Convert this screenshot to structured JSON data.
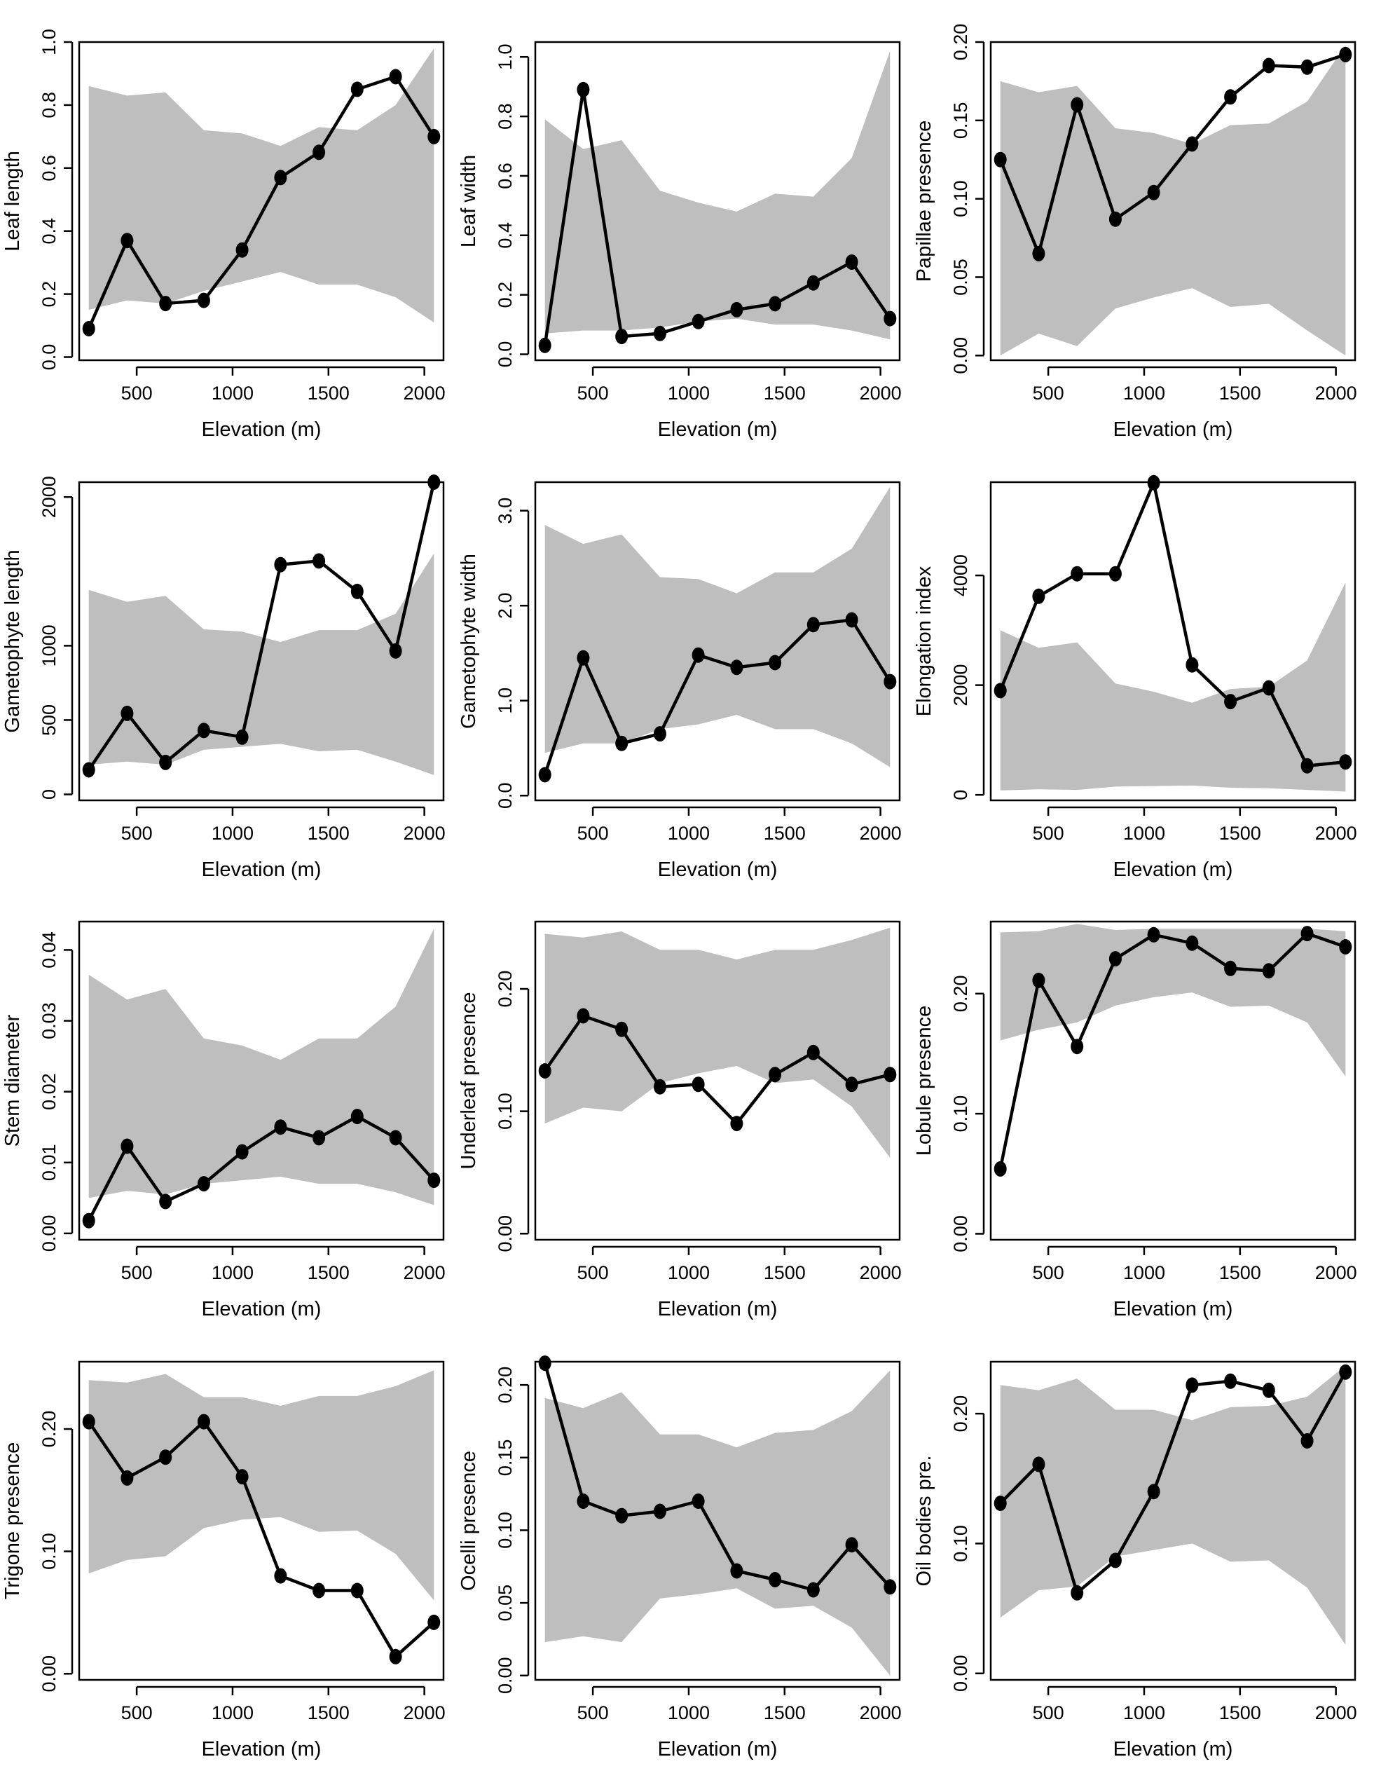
{
  "colors": {
    "band": "#bebebe",
    "line": "#000000",
    "point": "#000000",
    "frame": "#000000"
  },
  "chart_data": [
    {
      "type": "line",
      "xlabel": "Elevation (m)",
      "ylabel": "Leaf length",
      "xlim": [
        200,
        2100
      ],
      "ylim": [
        -0.01,
        1.0
      ],
      "xticks": [
        500,
        1000,
        1500,
        2000
      ],
      "xtick_labels": [
        "500",
        "1000",
        "1500",
        "2000"
      ],
      "yticks": [
        0.0,
        0.2,
        0.4,
        0.6,
        0.8,
        1.0
      ],
      "ytick_labels": [
        "0.0",
        "0.2",
        "0.4",
        "0.6",
        "0.8",
        "1.0"
      ],
      "x": [
        250,
        450,
        650,
        850,
        1050,
        1250,
        1450,
        1650,
        1850,
        2050
      ],
      "values": [
        0.09,
        0.37,
        0.17,
        0.18,
        0.34,
        0.57,
        0.65,
        0.85,
        0.89,
        0.7
      ],
      "band_x": [
        250,
        450,
        650,
        850,
        1050,
        1250,
        1450,
        1650,
        1850,
        2050
      ],
      "band_upper": [
        0.86,
        0.83,
        0.84,
        0.72,
        0.71,
        0.67,
        0.73,
        0.72,
        0.8,
        0.98
      ],
      "band_lower": [
        0.15,
        0.18,
        0.17,
        0.21,
        0.24,
        0.27,
        0.23,
        0.23,
        0.19,
        0.11
      ],
      "grid": false
    },
    {
      "type": "line",
      "xlabel": "Elevation (m)",
      "ylabel": "Leaf width",
      "xlim": [
        200,
        2100
      ],
      "ylim": [
        -0.02,
        1.05
      ],
      "xticks": [
        500,
        1000,
        1500,
        2000
      ],
      "xtick_labels": [
        "500",
        "1000",
        "1500",
        "2000"
      ],
      "yticks": [
        0.0,
        0.2,
        0.4,
        0.6,
        0.8,
        1.0
      ],
      "ytick_labels": [
        "0.0",
        "0.2",
        "0.4",
        "0.6",
        "0.8",
        "1.0"
      ],
      "x": [
        250,
        450,
        650,
        850,
        1050,
        1250,
        1450,
        1650,
        1850,
        2050
      ],
      "values": [
        0.03,
        0.89,
        0.06,
        0.07,
        0.11,
        0.15,
        0.17,
        0.24,
        0.31,
        0.12
      ],
      "band_x": [
        250,
        450,
        650,
        850,
        1050,
        1250,
        1450,
        1650,
        1850,
        2050
      ],
      "band_upper": [
        0.79,
        0.69,
        0.72,
        0.55,
        0.51,
        0.48,
        0.54,
        0.53,
        0.66,
        1.02
      ],
      "band_lower": [
        0.07,
        0.08,
        0.08,
        0.09,
        0.11,
        0.12,
        0.1,
        0.1,
        0.08,
        0.05
      ],
      "grid": false
    },
    {
      "type": "line",
      "xlabel": "Elevation (m)",
      "ylabel": "Papillae presence",
      "xlim": [
        200,
        2100
      ],
      "ylim": [
        -0.003,
        0.2
      ],
      "xticks": [
        500,
        1000,
        1500,
        2000
      ],
      "xtick_labels": [
        "500",
        "1000",
        "1500",
        "2000"
      ],
      "yticks": [
        0.0,
        0.05,
        0.1,
        0.15,
        0.2
      ],
      "ytick_labels": [
        "0.00",
        "0.05",
        "0.10",
        "0.15",
        "0.20"
      ],
      "x": [
        250,
        450,
        650,
        850,
        1050,
        1250,
        1450,
        1650,
        1850,
        2050
      ],
      "values": [
        0.125,
        0.065,
        0.16,
        0.087,
        0.104,
        0.135,
        0.165,
        0.185,
        0.184,
        0.192
      ],
      "band_x": [
        250,
        450,
        650,
        850,
        1050,
        1250,
        1450,
        1650,
        1850,
        2050
      ],
      "band_upper": [
        0.175,
        0.168,
        0.172,
        0.145,
        0.142,
        0.135,
        0.147,
        0.148,
        0.162,
        0.198
      ],
      "band_lower": [
        0.0,
        0.014,
        0.006,
        0.03,
        0.037,
        0.043,
        0.031,
        0.033,
        0.016,
        0.0
      ],
      "grid": false
    },
    {
      "type": "line",
      "xlabel": "Elevation (m)",
      "ylabel": "Gametophyte length",
      "xlim": [
        200,
        2100
      ],
      "ylim": [
        -40,
        2100
      ],
      "xticks": [
        500,
        1000,
        1500,
        2000
      ],
      "xtick_labels": [
        "500",
        "1000",
        "1500",
        "2000"
      ],
      "yticks": [
        0,
        500,
        1000,
        2000
      ],
      "ytick_labels": [
        "0",
        "500",
        "1000",
        "2000"
      ],
      "x": [
        250,
        450,
        650,
        850,
        1050,
        1250,
        1450,
        1650,
        1850,
        2050
      ],
      "values": [
        165,
        545,
        215,
        430,
        385,
        1545,
        1570,
        1365,
        965,
        2100
      ],
      "band_x": [
        250,
        450,
        650,
        850,
        1050,
        1250,
        1450,
        1650,
        1850,
        2050
      ],
      "band_upper": [
        1375,
        1295,
        1335,
        1110,
        1095,
        1025,
        1105,
        1105,
        1215,
        1620
      ],
      "band_lower": [
        200,
        220,
        200,
        300,
        320,
        340,
        290,
        300,
        220,
        130
      ],
      "grid": false
    },
    {
      "type": "line",
      "xlabel": "Elevation (m)",
      "ylabel": "Gametophyte width",
      "xlim": [
        200,
        2100
      ],
      "ylim": [
        -0.05,
        3.3
      ],
      "xticks": [
        500,
        1000,
        1500,
        2000
      ],
      "xtick_labels": [
        "500",
        "1000",
        "1500",
        "2000"
      ],
      "yticks": [
        0.0,
        1.0,
        2.0,
        3.0
      ],
      "ytick_labels": [
        "0.0",
        "1.0",
        "2.0",
        "3.0"
      ],
      "x": [
        250,
        450,
        650,
        850,
        1050,
        1250,
        1450,
        1650,
        1850,
        2050
      ],
      "values": [
        0.22,
        1.45,
        0.55,
        0.65,
        1.48,
        1.35,
        1.4,
        1.8,
        1.85,
        1.2
      ],
      "band_x": [
        250,
        450,
        650,
        850,
        1050,
        1250,
        1450,
        1650,
        1850,
        2050
      ],
      "band_upper": [
        2.85,
        2.65,
        2.75,
        2.3,
        2.28,
        2.13,
        2.35,
        2.35,
        2.6,
        3.25
      ],
      "band_lower": [
        0.45,
        0.55,
        0.55,
        0.7,
        0.75,
        0.85,
        0.7,
        0.7,
        0.55,
        0.3
      ],
      "grid": false
    },
    {
      "type": "line",
      "xlabel": "Elevation (m)",
      "ylabel": "Elongation index",
      "xlim": [
        200,
        2100
      ],
      "ylim": [
        -100,
        5700
      ],
      "xticks": [
        500,
        1000,
        1500,
        2000
      ],
      "xtick_labels": [
        "500",
        "1000",
        "1500",
        "2000"
      ],
      "yticks": [
        0,
        2000,
        4000
      ],
      "ytick_labels": [
        "0",
        "2000",
        "4000"
      ],
      "x": [
        250,
        450,
        650,
        850,
        1050,
        1250,
        1450,
        1650,
        1850,
        2050
      ],
      "values": [
        1900,
        3620,
        4030,
        4030,
        5690,
        2370,
        1700,
        1950,
        530,
        600
      ],
      "band_x": [
        250,
        450,
        650,
        850,
        1050,
        1250,
        1450,
        1650,
        1850,
        2050
      ],
      "band_upper": [
        3000,
        2680,
        2780,
        2030,
        1880,
        1680,
        1930,
        1970,
        2450,
        3870
      ],
      "band_lower": [
        80,
        100,
        90,
        150,
        160,
        170,
        130,
        120,
        90,
        60
      ],
      "grid": false
    },
    {
      "type": "line",
      "xlabel": "Elevation (m)",
      "ylabel": "Stem diameter",
      "xlim": [
        200,
        2100
      ],
      "ylim": [
        -0.0009,
        0.044
      ],
      "xticks": [
        500,
        1000,
        1500,
        2000
      ],
      "xtick_labels": [
        "500",
        "1000",
        "1500",
        "2000"
      ],
      "yticks": [
        0.0,
        0.01,
        0.02,
        0.03,
        0.04
      ],
      "ytick_labels": [
        "0.00",
        "0.01",
        "0.02",
        "0.03",
        "0.04"
      ],
      "x": [
        250,
        450,
        650,
        850,
        1050,
        1250,
        1450,
        1650,
        1850,
        2050
      ],
      "values": [
        0.0018,
        0.0123,
        0.0045,
        0.007,
        0.0115,
        0.015,
        0.0135,
        0.0165,
        0.0135,
        0.0075
      ],
      "band_x": [
        250,
        450,
        650,
        850,
        1050,
        1250,
        1450,
        1650,
        1850,
        2050
      ],
      "band_upper": [
        0.0365,
        0.033,
        0.0345,
        0.0275,
        0.0265,
        0.0245,
        0.0275,
        0.0275,
        0.032,
        0.043
      ],
      "band_lower": [
        0.005,
        0.006,
        0.0055,
        0.007,
        0.0075,
        0.008,
        0.007,
        0.007,
        0.0058,
        0.004
      ],
      "grid": false
    },
    {
      "type": "line",
      "xlabel": "Elevation (m)",
      "ylabel": "Underleaf presence",
      "xlim": [
        200,
        2100
      ],
      "ylim": [
        -0.005,
        0.255
      ],
      "xticks": [
        500,
        1000,
        1500,
        2000
      ],
      "xtick_labels": [
        "500",
        "1000",
        "1500",
        "2000"
      ],
      "yticks": [
        0.0,
        0.1,
        0.2
      ],
      "ytick_labels": [
        "0.00",
        "0.10",
        "0.20"
      ],
      "x": [
        250,
        450,
        650,
        850,
        1050,
        1250,
        1450,
        1650,
        1850,
        2050
      ],
      "values": [
        0.133,
        0.178,
        0.167,
        0.12,
        0.122,
        0.09,
        0.13,
        0.148,
        0.122,
        0.13
      ],
      "band_x": [
        250,
        450,
        650,
        850,
        1050,
        1250,
        1450,
        1650,
        1850,
        2050
      ],
      "band_upper": [
        0.245,
        0.242,
        0.247,
        0.232,
        0.232,
        0.224,
        0.232,
        0.232,
        0.24,
        0.25
      ],
      "band_lower": [
        0.09,
        0.103,
        0.1,
        0.123,
        0.131,
        0.137,
        0.123,
        0.126,
        0.104,
        0.062
      ],
      "grid": false
    },
    {
      "type": "line",
      "xlabel": "Elevation (m)",
      "ylabel": "Lobule presence",
      "xlim": [
        200,
        2100
      ],
      "ylim": [
        -0.005,
        0.26
      ],
      "xticks": [
        500,
        1000,
        1500,
        2000
      ],
      "xtick_labels": [
        "500",
        "1000",
        "1500",
        "2000"
      ],
      "yticks": [
        0.0,
        0.1,
        0.2
      ],
      "ytick_labels": [
        "0.00",
        "0.10",
        "0.20"
      ],
      "x": [
        250,
        450,
        650,
        850,
        1050,
        1250,
        1450,
        1650,
        1850,
        2050
      ],
      "values": [
        0.054,
        0.211,
        0.156,
        0.229,
        0.249,
        0.242,
        0.221,
        0.219,
        0.25,
        0.239
      ],
      "band_x": [
        250,
        450,
        650,
        850,
        1050,
        1250,
        1450,
        1650,
        1850,
        2050
      ],
      "band_upper": [
        0.251,
        0.252,
        0.258,
        0.253,
        0.254,
        0.254,
        0.254,
        0.254,
        0.254,
        0.252
      ],
      "band_lower": [
        0.161,
        0.17,
        0.176,
        0.19,
        0.197,
        0.201,
        0.189,
        0.19,
        0.176,
        0.131
      ],
      "grid": false
    },
    {
      "type": "line",
      "xlabel": "Elevation (m)",
      "ylabel": "Trigone presence",
      "xlim": [
        200,
        2100
      ],
      "ylim": [
        -0.005,
        0.255
      ],
      "xticks": [
        500,
        1000,
        1500,
        2000
      ],
      "xtick_labels": [
        "500",
        "1000",
        "1500",
        "2000"
      ],
      "yticks": [
        0.0,
        0.1,
        0.2
      ],
      "ytick_labels": [
        "0.00",
        "0.10",
        "0.20"
      ],
      "x": [
        250,
        450,
        650,
        850,
        1050,
        1250,
        1450,
        1650,
        1850,
        2050
      ],
      "values": [
        0.206,
        0.16,
        0.177,
        0.206,
        0.161,
        0.08,
        0.068,
        0.068,
        0.014,
        0.042
      ],
      "band_x": [
        250,
        450,
        650,
        850,
        1050,
        1250,
        1450,
        1650,
        1850,
        2050
      ],
      "band_upper": [
        0.24,
        0.238,
        0.245,
        0.226,
        0.226,
        0.219,
        0.227,
        0.227,
        0.235,
        0.248
      ],
      "band_lower": [
        0.082,
        0.093,
        0.096,
        0.119,
        0.126,
        0.128,
        0.116,
        0.117,
        0.098,
        0.06
      ],
      "grid": false
    },
    {
      "type": "line",
      "xlabel": "Elevation (m)",
      "ylabel": "Ocelli presence",
      "xlim": [
        200,
        2100
      ],
      "ylim": [
        -0.003,
        0.216
      ],
      "xticks": [
        500,
        1000,
        1500,
        2000
      ],
      "xtick_labels": [
        "500",
        "1000",
        "1500",
        "2000"
      ],
      "yticks": [
        0.0,
        0.05,
        0.1,
        0.15,
        0.2
      ],
      "ytick_labels": [
        "0.00",
        "0.05",
        "0.10",
        "0.15",
        "0.20"
      ],
      "x": [
        250,
        450,
        650,
        850,
        1050,
        1250,
        1450,
        1650,
        1850,
        2050
      ],
      "values": [
        0.215,
        0.12,
        0.11,
        0.113,
        0.12,
        0.072,
        0.066,
        0.059,
        0.09,
        0.061
      ],
      "band_x": [
        250,
        450,
        650,
        850,
        1050,
        1250,
        1450,
        1650,
        1850,
        2050
      ],
      "band_upper": [
        0.191,
        0.184,
        0.195,
        0.166,
        0.166,
        0.157,
        0.167,
        0.169,
        0.182,
        0.21
      ],
      "band_lower": [
        0.023,
        0.027,
        0.023,
        0.053,
        0.056,
        0.06,
        0.046,
        0.048,
        0.033,
        0.0
      ],
      "grid": false
    },
    {
      "type": "line",
      "xlabel": "Elevation (m)",
      "ylabel": "Oil bodies pre.",
      "xlim": [
        200,
        2100
      ],
      "ylim": [
        -0.005,
        0.24
      ],
      "xticks": [
        500,
        1000,
        1500,
        2000
      ],
      "xtick_labels": [
        "500",
        "1000",
        "1500",
        "2000"
      ],
      "yticks": [
        0.0,
        0.1,
        0.2
      ],
      "ytick_labels": [
        "0.00",
        "0.10",
        "0.20"
      ],
      "x": [
        250,
        450,
        650,
        850,
        1050,
        1250,
        1450,
        1650,
        1850,
        2050
      ],
      "values": [
        0.131,
        0.161,
        0.062,
        0.087,
        0.14,
        0.222,
        0.225,
        0.218,
        0.179,
        0.232
      ],
      "band_x": [
        250,
        450,
        650,
        850,
        1050,
        1250,
        1450,
        1650,
        1850,
        2050
      ],
      "band_upper": [
        0.222,
        0.218,
        0.227,
        0.203,
        0.203,
        0.195,
        0.205,
        0.206,
        0.213,
        0.237
      ],
      "band_lower": [
        0.043,
        0.064,
        0.067,
        0.09,
        0.095,
        0.1,
        0.086,
        0.087,
        0.066,
        0.022
      ],
      "grid": false
    }
  ]
}
